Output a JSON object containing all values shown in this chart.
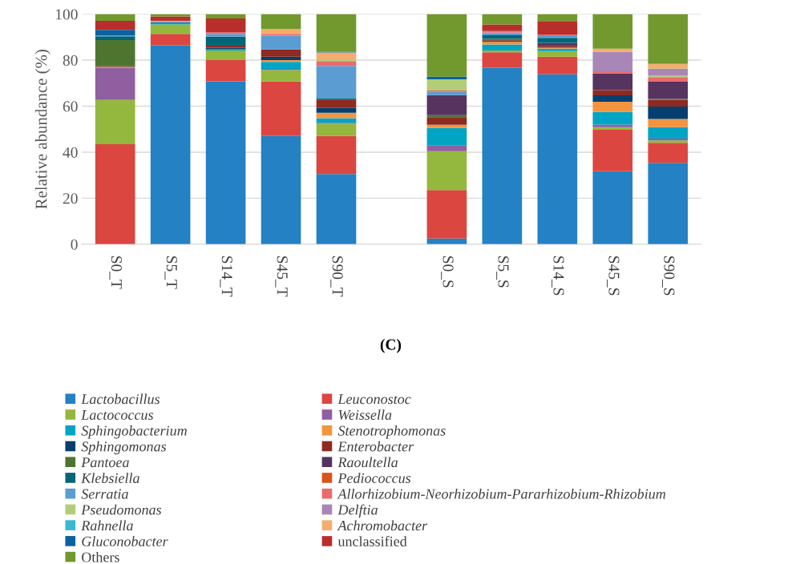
{
  "chart_data": {
    "type": "bar",
    "stacked": true,
    "ylabel": "Relative abundance (%)",
    "categories": [
      "S0_T",
      "S5_T",
      "S14_T",
      "S45_T",
      "S90_T",
      null,
      "S0_S",
      "S5_S",
      "S14_S",
      "S45_S",
      "S90_S"
    ],
    "ylim": [
      0,
      100
    ],
    "yticks": [
      0,
      20,
      40,
      60,
      80,
      100
    ],
    "grid": "y",
    "legend": "bottom",
    "annotations": [
      "(C)"
    ],
    "series": [
      {
        "name": "Lactobacillus",
        "color": "#2381c4",
        "values": [
          0,
          86.5,
          70.8,
          47.0,
          30.5,
          null,
          2.5,
          76.7,
          73.8,
          31.7,
          35.4
        ]
      },
      {
        "name": "Leuconostoc",
        "color": "#db4641",
        "values": [
          43.5,
          4.9,
          9.2,
          23.8,
          16.5,
          null,
          21.0,
          6.7,
          7.7,
          18.0,
          8.7
        ]
      },
      {
        "name": "Lactococcus",
        "color": "#93b83d",
        "values": [
          19.2,
          4.1,
          4.2,
          4.9,
          5.3,
          null,
          16.9,
          0.8,
          2.4,
          1.2,
          1.0
        ]
      },
      {
        "name": "Weissella",
        "color": "#8f5fa0",
        "values": [
          14.0,
          0,
          0,
          0.5,
          0.5,
          null,
          2.6,
          0,
          0,
          1.1,
          0.8
        ]
      },
      {
        "name": "Sphingobacterium",
        "color": "#00a5c5",
        "values": [
          0,
          0.3,
          0.6,
          3.0,
          2.0,
          null,
          7.5,
          2.6,
          1.1,
          5.5,
          5.0
        ]
      },
      {
        "name": "Stenotrophomonas",
        "color": "#f39440",
        "values": [
          0.3,
          0,
          0,
          0.8,
          2.3,
          null,
          1.4,
          1.1,
          0.4,
          4.4,
          3.5
        ]
      },
      {
        "name": "Sphingomonas",
        "color": "#043f6f",
        "values": [
          0,
          0,
          0.6,
          1.5,
          2.1,
          null,
          0,
          0,
          0,
          2.8,
          5.4
        ]
      },
      {
        "name": "Enterobacter",
        "color": "#8e2a20",
        "values": [
          0.3,
          0,
          0.9,
          3.1,
          3.7,
          null,
          3.3,
          0.7,
          0.8,
          2.3,
          2.9
        ]
      },
      {
        "name": "Pantoea",
        "color": "#4e7530",
        "values": [
          11.4,
          0,
          0,
          0,
          0,
          null,
          0.9,
          0.6,
          0,
          0,
          0.4
        ]
      },
      {
        "name": "Raoultella",
        "color": "#56345f",
        "values": [
          0,
          0,
          0,
          0,
          0,
          null,
          8.7,
          0,
          1.3,
          7.3,
          7.5
        ]
      },
      {
        "name": "Klebsiella",
        "color": "#006677",
        "values": [
          1.7,
          0.5,
          3.9,
          0,
          0.6,
          null,
          0,
          1.6,
          2.2,
          0,
          0
        ]
      },
      {
        "name": "Pediococcus",
        "color": "#d9541a",
        "values": [
          0,
          0,
          0,
          0,
          0,
          null,
          0,
          0,
          0,
          0,
          0
        ]
      },
      {
        "name": "Serratia",
        "color": "#5b9cd3",
        "values": [
          0.3,
          0.5,
          1.2,
          6.0,
          14.0,
          null,
          1.4,
          0.8,
          1.1,
          0,
          0
        ]
      },
      {
        "name": "Allorhizobium-Neorhizobium-Pararhizobium-Rhizobium",
        "color": "#eb6a6e",
        "values": [
          0,
          0,
          0.6,
          0.8,
          2.1,
          null,
          0.6,
          0.5,
          0.4,
          0.8,
          2.0
        ]
      },
      {
        "name": "Pseudomonas",
        "color": "#b3cd77",
        "values": [
          0,
          0,
          0,
          0,
          0.8,
          null,
          4.9,
          0,
          0,
          0,
          0.6
        ]
      },
      {
        "name": "Delftia",
        "color": "#a986b8",
        "values": [
          0,
          0,
          0,
          0,
          0,
          null,
          0,
          0.5,
          0,
          8.5,
          2.6
        ]
      },
      {
        "name": "Rahnella",
        "color": "#38b8d1",
        "values": [
          0,
          0,
          0,
          0,
          0,
          null,
          0,
          0,
          0,
          0,
          0.5
        ]
      },
      {
        "name": "Achromobacter",
        "color": "#f5ad6d",
        "values": [
          0,
          0.3,
          0,
          2.1,
          2.9,
          null,
          0,
          0,
          0,
          1.4,
          2.1
        ]
      },
      {
        "name": "Gluconobacter",
        "color": "#0a62a0",
        "values": [
          2.5,
          0,
          0,
          0,
          0.4,
          null,
          1.1,
          0,
          0,
          0,
          0
        ]
      },
      {
        "name": "unclassified",
        "color": "#b82e2b",
        "values": [
          3.9,
          1.9,
          6.1,
          0,
          0,
          null,
          0,
          2.9,
          5.8,
          0,
          0
        ]
      },
      {
        "name": "Others",
        "color": "#71992e",
        "values": [
          2.9,
          1.0,
          1.9,
          6.5,
          16.3,
          null,
          27.2,
          4.5,
          3.0,
          15.0,
          21.6
        ]
      }
    ]
  }
}
